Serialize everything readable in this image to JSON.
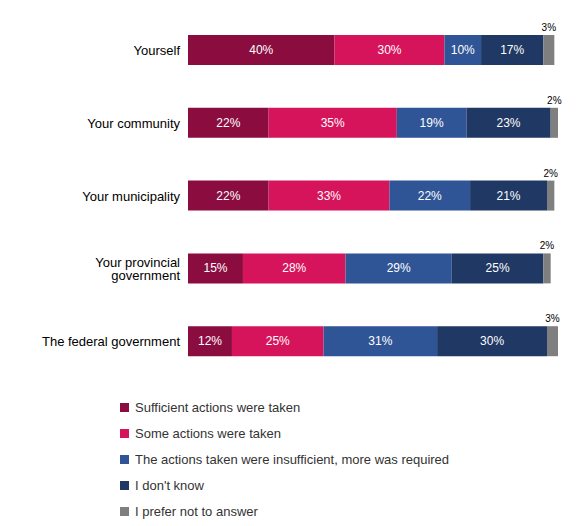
{
  "chart_data": {
    "type": "bar",
    "orientation": "horizontal",
    "stacked": true,
    "data_labels": true,
    "tick_labels": "y",
    "legend": "bottom",
    "xlim": [
      0,
      101
    ],
    "categories": [
      "Yourself",
      "Your community",
      "Your municipality",
      "Your provincial government",
      "The federal government"
    ],
    "series": [
      {
        "name": "Sufficient actions were taken",
        "color": "#8b0d3f",
        "values": [
          40,
          22,
          22,
          15,
          12
        ],
        "value_labels": [
          "40%",
          "22%",
          "22%",
          "15%",
          "12%"
        ]
      },
      {
        "name": "Some actions were taken",
        "color": "#d6145b",
        "values": [
          30,
          35,
          33,
          28,
          25
        ],
        "value_labels": [
          "30%",
          "35%",
          "33%",
          "28%",
          "25%"
        ]
      },
      {
        "name": "The actions taken were insufficient, more was required",
        "color": "#2f5597",
        "values": [
          10,
          19,
          22,
          29,
          31
        ],
        "value_labels": [
          "10%",
          "19%",
          "22%",
          "29%",
          "31%"
        ]
      },
      {
        "name": "I don't know",
        "color": "#1f3864",
        "values": [
          17,
          23,
          21,
          25,
          30
        ],
        "value_labels": [
          "17%",
          "23%",
          "21%",
          "25%",
          "30%"
        ]
      },
      {
        "name": "I prefer not to answer",
        "color": "#7f7f7f",
        "values": [
          3,
          2,
          2,
          2,
          3
        ],
        "value_labels": [
          "3%",
          "2%",
          "2%",
          "2%",
          "3%"
        ]
      }
    ]
  }
}
